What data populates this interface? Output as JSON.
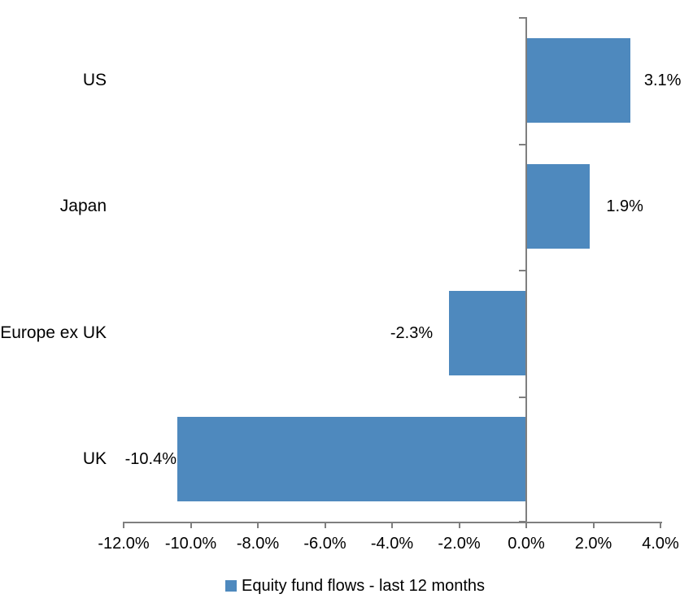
{
  "chart_data": {
    "type": "bar",
    "orientation": "horizontal",
    "categories": [
      "US",
      "Japan",
      "Europe ex UK",
      "UK"
    ],
    "values": [
      3.1,
      1.9,
      -2.3,
      -10.4
    ],
    "data_labels": [
      "3.1%",
      "1.9%",
      "-2.3%",
      "-10.4%"
    ],
    "x_ticks": [
      -12,
      -10,
      -8,
      -6,
      -4,
      -2,
      0,
      2,
      4
    ],
    "x_tick_labels": [
      "-12.0%",
      "-10.0%",
      "-8.0%",
      "-6.0%",
      "-4.0%",
      "-2.0%",
      "0.0%",
      "2.0%",
      "4.0%"
    ],
    "xlim": [
      -12,
      4
    ],
    "grid": false,
    "legend": {
      "label": "Equity fund flows - last 12 months",
      "position": "bottom"
    },
    "colors": {
      "bar": "#4E89BE",
      "axis": "#7F7F7F",
      "text": "#000000",
      "background": "#FFFFFF"
    }
  }
}
